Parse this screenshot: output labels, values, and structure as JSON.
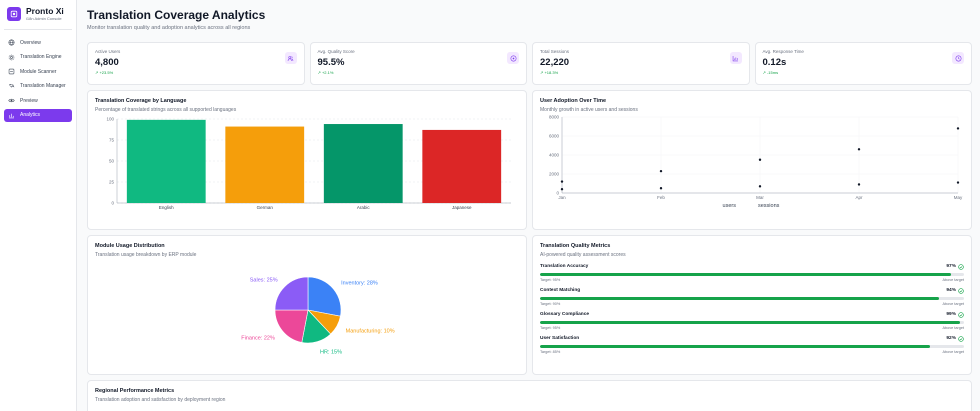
{
  "brand": {
    "name": "Pronto Xi",
    "subtitle": "i18n Admin Console"
  },
  "nav": [
    {
      "label": "Overview",
      "icon": "globe-icon"
    },
    {
      "label": "Translation Engine",
      "icon": "gear-icon"
    },
    {
      "label": "Module Scanner",
      "icon": "scan-icon"
    },
    {
      "label": "Translation Manager",
      "icon": "translate-icon"
    },
    {
      "label": "Preview",
      "icon": "eye-icon"
    },
    {
      "label": "Analytics",
      "icon": "bar-chart-icon",
      "active": true
    }
  ],
  "header": {
    "title": "Translation Coverage Analytics",
    "subtitle": "Monitor translation quality and adoption analytics across all regions"
  },
  "stats": [
    {
      "label": "Active Users",
      "value": "4,800",
      "trend": "+23.5%",
      "icon": "users-icon"
    },
    {
      "label": "Avg. Quality Score",
      "value": "95.5%",
      "trend": "+2.1%",
      "icon": "target-icon"
    },
    {
      "label": "Total Sessions",
      "value": "22,220",
      "trend": "+18.3%",
      "icon": "chart-icon"
    },
    {
      "label": "Avg. Response Time",
      "value": "0.12s",
      "trend": "-15ms",
      "icon": "clock-icon"
    }
  ],
  "coverage": {
    "title": "Translation Coverage by Language",
    "subtitle": "Percentage of translated strings across all supported languages"
  },
  "adoption": {
    "title": "User Adoption Over Time",
    "subtitle": "Monthly growth in active users and sessions"
  },
  "usage": {
    "title": "Module Usage Distribution",
    "subtitle": "Translation usage breakdown by ERP module"
  },
  "quality": {
    "title": "Translation Quality Metrics",
    "subtitle": "AI-powered quality assessment scores",
    "metrics": [
      {
        "name": "Translation Accuracy",
        "value": "97%",
        "fill": 0.97,
        "target": "Target: 95%",
        "status": "Above target"
      },
      {
        "name": "Context Matching",
        "value": "94%",
        "fill": 0.94,
        "target": "Target: 90%",
        "status": "Above target"
      },
      {
        "name": "Glossary Compliance",
        "value": "99%",
        "fill": 0.99,
        "target": "Target: 95%",
        "status": "Above target"
      },
      {
        "name": "User Satisfaction",
        "value": "92%",
        "fill": 0.92,
        "target": "Target: 85%",
        "status": "Above target"
      }
    ]
  },
  "regional": {
    "title": "Regional Performance Metrics",
    "subtitle": "Translation adoption and satisfaction by deployment region"
  },
  "chart_data": [
    {
      "type": "bar",
      "categories": [
        "English",
        "German",
        "Arabic",
        "Japanese"
      ],
      "values": [
        99,
        91,
        94,
        87
      ],
      "colors": [
        "#10b981",
        "#f59e0b",
        "#059669",
        "#dc2626"
      ],
      "yticks": [
        "0",
        "25",
        "50",
        "75",
        "100"
      ],
      "ylim": [
        0,
        100
      ],
      "grid": true
    },
    {
      "type": "scatter",
      "x": [
        "Jan",
        "Feb",
        "Mar",
        "Apr",
        "May"
      ],
      "yticks": [
        "0",
        "2000",
        "4000",
        "6000",
        "8000"
      ],
      "ylim": [
        0,
        8000
      ],
      "series": [
        {
          "name": "users",
          "values": [
            1200,
            2300,
            3500,
            4600,
            6800
          ]
        },
        {
          "name": "sessions",
          "values": [
            400,
            500,
            700,
            900,
            1100
          ]
        }
      ],
      "legend": "bottom",
      "grid": true
    },
    {
      "type": "pie",
      "slices": [
        {
          "label": "Inventory",
          "value": 28,
          "text": "Inventory: 28%",
          "color": "#3b82f6"
        },
        {
          "label": "Manufacturing",
          "value": 10,
          "text": "Manufacturing: 10%",
          "color": "#f59e0b"
        },
        {
          "label": "HR",
          "value": 15,
          "text": "HR: 15%",
          "color": "#10b981"
        },
        {
          "label": "Finance",
          "value": 22,
          "text": "Finance: 22%",
          "color": "#ec4899"
        },
        {
          "label": "Sales",
          "value": 25,
          "text": "Sales: 25%",
          "color": "#8b5cf6"
        }
      ]
    }
  ]
}
